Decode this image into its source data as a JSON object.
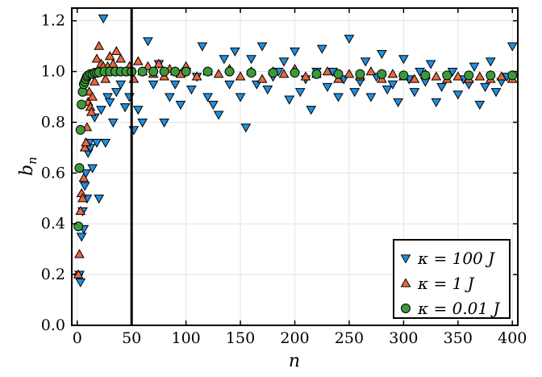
{
  "chart_data": {
    "type": "scatter",
    "title": "",
    "xlabel": "n",
    "ylabel": "b_n",
    "xlim": [
      -5,
      405
    ],
    "ylim": [
      0.0,
      1.25
    ],
    "grid": true,
    "x_ticks": [
      0,
      50,
      100,
      150,
      200,
      250,
      300,
      350,
      400
    ],
    "x_tick_labels": [
      "0",
      "50",
      "100",
      "150",
      "200",
      "250",
      "300",
      "350",
      "400"
    ],
    "y_ticks": [
      0.0,
      0.2,
      0.4,
      0.6,
      0.8,
      1.0,
      1.2
    ],
    "y_tick_labels": [
      "0.0",
      "0.2",
      "0.4",
      "0.6",
      "0.8",
      "1.0",
      "1.2"
    ],
    "vertical_line": {
      "x": 50,
      "color": "#000000"
    },
    "legend_position": "bottom-right",
    "series": [
      {
        "name": "κ = 100 J",
        "marker": "triangle-down",
        "color": "#1f8fe0",
        "x": [
          1,
          2,
          3,
          4,
          5,
          6,
          7,
          8,
          9,
          10,
          11,
          12,
          14,
          16,
          18,
          20,
          22,
          24,
          26,
          28,
          30,
          33,
          36,
          40,
          44,
          48,
          52,
          56,
          60,
          65,
          70,
          75,
          80,
          85,
          90,
          95,
          100,
          105,
          110,
          115,
          120,
          125,
          130,
          135,
          140,
          145,
          150,
          155,
          160,
          165,
          170,
          175,
          180,
          185,
          190,
          195,
          200,
          205,
          210,
          215,
          220,
          225,
          230,
          235,
          240,
          245,
          250,
          255,
          260,
          265,
          270,
          275,
          280,
          285,
          290,
          295,
          300,
          305,
          310,
          315,
          320,
          325,
          330,
          335,
          340,
          345,
          350,
          355,
          360,
          365,
          370,
          375,
          380,
          385,
          390,
          395,
          400
        ],
        "y": [
          0.19,
          0.2,
          0.17,
          0.35,
          0.45,
          0.38,
          0.55,
          0.6,
          0.5,
          0.68,
          0.72,
          0.7,
          0.62,
          0.82,
          0.72,
          0.5,
          0.85,
          1.21,
          0.72,
          0.9,
          0.88,
          0.8,
          0.92,
          0.95,
          0.86,
          0.9,
          0.77,
          0.85,
          0.8,
          1.12,
          0.95,
          1.03,
          0.8,
          0.9,
          0.95,
          0.87,
          1.0,
          0.93,
          0.98,
          1.1,
          0.9,
          0.87,
          0.83,
          1.05,
          0.95,
          1.08,
          0.9,
          0.78,
          1.05,
          0.95,
          1.1,
          0.93,
          0.98,
          1.0,
          1.04,
          0.89,
          1.08,
          0.92,
          0.97,
          0.85,
          1.0,
          1.09,
          0.94,
          1.0,
          0.9,
          0.97,
          1.13,
          0.92,
          0.96,
          1.04,
          0.9,
          0.98,
          1.07,
          0.93,
          0.95,
          0.88,
          1.05,
          0.97,
          0.92,
          1.0,
          0.96,
          1.03,
          0.88,
          0.94,
          0.98,
          1.0,
          0.91,
          0.97,
          0.95,
          1.02,
          0.87,
          0.94,
          1.04,
          0.92,
          0.96,
          0.98,
          1.1
        ]
      },
      {
        "name": "κ = 1 J",
        "marker": "triangle-up",
        "color": "#e8683f",
        "x": [
          1,
          2,
          3,
          4,
          5,
          6,
          7,
          8,
          9,
          10,
          11,
          12,
          13,
          14,
          16,
          18,
          20,
          22,
          24,
          26,
          28,
          30,
          33,
          36,
          40,
          44,
          48,
          52,
          56,
          60,
          65,
          70,
          75,
          80,
          85,
          90,
          95,
          100,
          110,
          120,
          130,
          140,
          150,
          160,
          170,
          180,
          190,
          200,
          210,
          220,
          230,
          240,
          250,
          260,
          270,
          280,
          290,
          300,
          310,
          320,
          330,
          340,
          350,
          360,
          370,
          380,
          390,
          400
        ],
        "y": [
          0.2,
          0.28,
          0.45,
          0.52,
          0.5,
          0.58,
          0.7,
          0.72,
          0.78,
          0.88,
          0.92,
          0.86,
          0.84,
          0.9,
          0.96,
          1.05,
          1.1,
          1.03,
          1.02,
          0.97,
          1.02,
          1.06,
          1.03,
          1.08,
          1.05,
          1.0,
          1.02,
          0.97,
          1.04,
          1.0,
          1.02,
          0.99,
          1.03,
          0.98,
          1.01,
          1.0,
          0.99,
          1.02,
          0.98,
          1.0,
          0.99,
          1.01,
          0.98,
          1.0,
          0.97,
          1.0,
          0.99,
          1.01,
          0.98,
          0.99,
          1.0,
          0.97,
          0.99,
          0.98,
          1.0,
          0.97,
          0.99,
          0.98,
          0.97,
          0.99,
          0.98,
          0.97,
          0.98,
          0.97,
          0.98,
          0.97,
          0.98,
          0.97
        ]
      },
      {
        "name": "κ = 0.01 J",
        "marker": "circle",
        "color": "#3a9a3a",
        "x": [
          1,
          2,
          3,
          4,
          5,
          6,
          7,
          8,
          9,
          10,
          12,
          14,
          16,
          18,
          20,
          25,
          30,
          35,
          40,
          45,
          50,
          60,
          70,
          80,
          90,
          100,
          120,
          140,
          160,
          180,
          200,
          220,
          240,
          260,
          280,
          300,
          320,
          340,
          360,
          380,
          400
        ],
        "y": [
          0.39,
          0.62,
          0.77,
          0.87,
          0.92,
          0.95,
          0.96,
          0.97,
          0.98,
          0.985,
          0.99,
          0.99,
          0.995,
          0.995,
          0.997,
          1.0,
          1.0,
          1.0,
          1.0,
          1.0,
          1.0,
          1.0,
          1.0,
          1.0,
          1.0,
          1.0,
          1.0,
          1.0,
          0.995,
          0.995,
          0.995,
          0.99,
          0.99,
          0.99,
          0.99,
          0.985,
          0.985,
          0.985,
          0.985,
          0.985,
          0.985
        ]
      }
    ]
  }
}
